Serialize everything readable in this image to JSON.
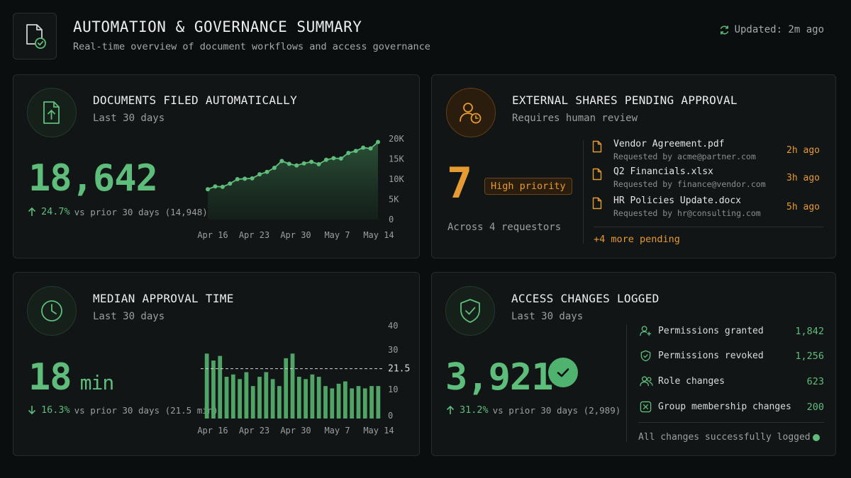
{
  "header": {
    "title": "AUTOMATION & GOVERNANCE SUMMARY",
    "subtitle": "Real-time overview of document workflows and access governance",
    "updated": "Updated: 2m ago"
  },
  "documents_filed": {
    "title": "DOCUMENTS FILED AUTOMATICALLY",
    "period": "Last 30 days",
    "value": "18,642",
    "delta_pct": "24.7%",
    "delta_text": "vs prior 30 days (14,948)"
  },
  "external_shares": {
    "title": "EXTERNAL SHARES PENDING APPROVAL",
    "subtitle": "Requires human review",
    "value": "7",
    "badge": "High priority",
    "requestors": "Across 4 requestors",
    "items": [
      {
        "name": "Vendor Agreement.pdf",
        "requested_by": "Requested by acme@partner.com",
        "time": "2h ago"
      },
      {
        "name": "Q2 Financials.xlsx",
        "requested_by": "Requested by finance@vendor.com",
        "time": "3h ago"
      },
      {
        "name": "HR Policies Update.docx",
        "requested_by": "Requested by hr@consulting.com",
        "time": "5h ago"
      }
    ],
    "more": "+4 more pending"
  },
  "median_approval": {
    "title": "MEDIAN APPROVAL TIME",
    "period": "Last 30 days",
    "value": "18",
    "unit": "min",
    "delta_pct": "16.3%",
    "delta_text": "vs prior 30 days (21.5 min)"
  },
  "access_changes": {
    "title": "ACCESS CHANGES LOGGED",
    "period": "Last 30 days",
    "value": "3,921",
    "delta_pct": "31.2%",
    "delta_text": "vs prior 30 days (2,989)",
    "rows": [
      {
        "label": "Permissions granted",
        "value": "1,842",
        "icon": "user-plus-icon"
      },
      {
        "label": "Permissions revoked",
        "value": "1,256",
        "icon": "shield-icon"
      },
      {
        "label": "Role changes",
        "value": "623",
        "icon": "users-icon"
      },
      {
        "label": "Group membership changes",
        "value": "200",
        "icon": "group-x-icon"
      }
    ],
    "footer": "All changes successfully logged"
  },
  "colors": {
    "accent_green": "#5fbd7b",
    "accent_orange": "#e69a32",
    "background": "#0b0e0f"
  },
  "chart_data": [
    {
      "type": "area",
      "x_ticks": [
        "Apr 16",
        "Apr 23",
        "Apr 30",
        "May 7",
        "May 14"
      ],
      "y_ticks": [
        "20K",
        "15K",
        "10K",
        "5K",
        "0"
      ],
      "ylim": [
        0,
        20000
      ],
      "values": [
        7500,
        8200,
        8100,
        8900,
        10000,
        10100,
        10200,
        11200,
        11800,
        12800,
        14500,
        13800,
        13400,
        13900,
        14300,
        13700,
        14800,
        15200,
        15100,
        16500,
        17000,
        17800,
        17600,
        19200
      ]
    },
    {
      "type": "bar",
      "x_ticks": [
        "Apr 16",
        "Apr 23",
        "Apr 30",
        "May 7",
        "May 14"
      ],
      "y_ticks": [
        "40",
        "30",
        "21.5",
        "10",
        "0"
      ],
      "ylim": [
        0,
        40
      ],
      "reference_line": 21.5,
      "values": [
        28,
        25,
        27,
        18,
        19,
        17,
        20,
        14,
        18,
        20,
        17,
        14,
        26,
        28,
        18,
        17,
        19,
        18,
        14,
        13,
        15,
        16,
        13,
        14,
        13,
        14,
        14
      ]
    }
  ]
}
